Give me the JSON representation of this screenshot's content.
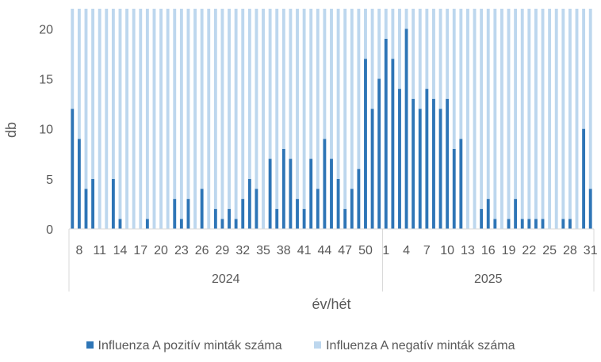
{
  "chart_data": {
    "type": "bar",
    "stacked": true,
    "xlabel": "év/hét",
    "ylabel": "db",
    "ylim": [
      0,
      22
    ],
    "yticks": [
      0,
      5,
      10,
      15,
      20
    ],
    "grid": false,
    "legend_position": "bottom",
    "years": [
      {
        "label": "2024",
        "weeks": [
          7,
          8,
          9,
          10,
          11,
          12,
          13,
          14,
          15,
          16,
          17,
          18,
          19,
          20,
          21,
          22,
          23,
          24,
          25,
          26,
          27,
          28,
          29,
          30,
          31,
          32,
          33,
          34,
          35,
          36,
          37,
          38,
          39,
          40,
          41,
          42,
          43,
          44,
          45,
          46,
          47,
          48,
          49,
          50,
          51,
          52
        ]
      },
      {
        "label": "2025",
        "weeks": [
          1,
          2,
          3,
          4,
          5,
          6,
          7,
          8,
          9,
          10,
          11,
          12,
          13,
          14,
          15,
          16,
          17,
          18,
          19,
          20,
          21,
          22,
          23,
          24,
          25,
          26,
          27,
          28,
          29,
          30,
          31
        ]
      }
    ],
    "tick_labels": [
      "8",
      "11",
      "14",
      "17",
      "20",
      "23",
      "26",
      "29",
      "32",
      "35",
      "38",
      "41",
      "44",
      "47",
      "50",
      "1",
      "4",
      "7",
      "10",
      "13",
      "16",
      "19",
      "22",
      "25",
      "28",
      "31"
    ],
    "series": [
      {
        "name": "Influenza A pozitív minták száma",
        "color": "#2e75b6",
        "values": [
          12,
          9,
          4,
          5,
          0,
          0,
          5,
          1,
          0,
          0,
          0,
          1,
          0,
          0,
          0,
          3,
          1,
          3,
          0,
          4,
          0,
          2,
          1,
          2,
          1,
          3,
          5,
          4,
          0,
          7,
          2,
          8,
          7,
          3,
          2,
          7,
          4,
          9,
          7,
          5,
          2,
          4,
          6,
          17,
          12,
          15,
          19,
          17,
          14,
          20,
          13,
          12,
          14,
          13,
          12,
          13,
          8,
          9,
          0,
          0,
          2,
          3,
          1,
          0,
          1,
          3,
          1,
          1,
          1,
          1,
          0,
          0,
          1,
          1,
          0,
          10,
          4
        ]
      },
      {
        "name": "Influenza A negatív minták száma",
        "color": "#bdd7ee",
        "values": [
          10,
          13,
          18,
          17,
          22,
          22,
          17,
          21,
          22,
          22,
          22,
          21,
          22,
          22,
          22,
          19,
          21,
          19,
          22,
          18,
          22,
          20,
          21,
          20,
          21,
          19,
          17,
          18,
          22,
          15,
          20,
          14,
          15,
          19,
          20,
          15,
          18,
          13,
          15,
          17,
          20,
          18,
          16,
          5,
          10,
          7,
          3,
          5,
          8,
          2,
          9,
          10,
          8,
          9,
          10,
          9,
          14,
          13,
          22,
          22,
          20,
          19,
          21,
          22,
          21,
          19,
          21,
          21,
          21,
          21,
          22,
          22,
          21,
          21,
          22,
          12,
          18
        ]
      }
    ]
  }
}
